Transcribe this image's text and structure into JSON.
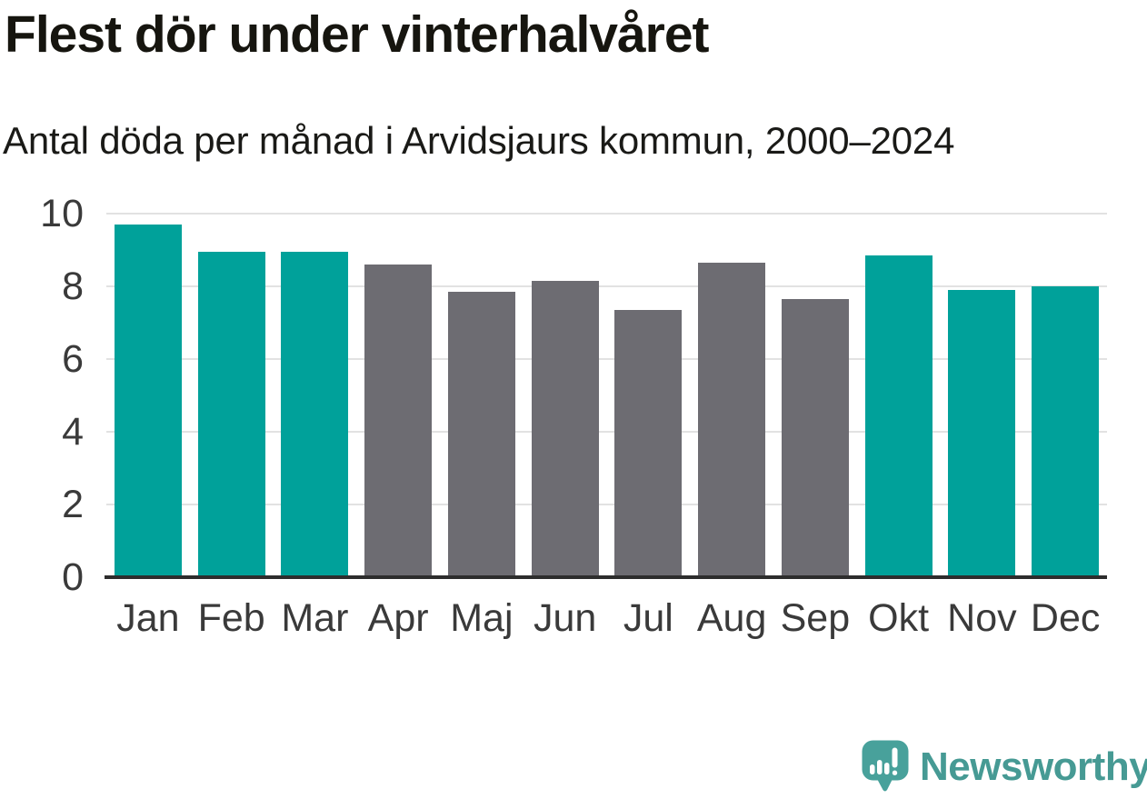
{
  "header": {
    "title": "Flest dör under vinterhalvåret",
    "subtitle": "Antal döda per månad i Arvidsjaurs kommun, 2000–2024"
  },
  "chart_data": {
    "type": "bar",
    "title": "Flest dör under vinterhalvåret",
    "subtitle": "Antal döda per månad i Arvidsjaurs kommun, 2000–2024",
    "categories": [
      "Jan",
      "Feb",
      "Mar",
      "Apr",
      "Maj",
      "Jun",
      "Jul",
      "Aug",
      "Sep",
      "Okt",
      "Nov",
      "Dec"
    ],
    "values": [
      9.7,
      8.95,
      8.95,
      8.6,
      7.85,
      8.15,
      7.35,
      8.65,
      7.65,
      8.85,
      7.9,
      8.0
    ],
    "highlighted": [
      true,
      true,
      true,
      false,
      false,
      false,
      false,
      false,
      false,
      true,
      true,
      true
    ],
    "xlabel": "",
    "ylabel": "",
    "ylim": [
      0,
      10
    ],
    "yticks": [
      0,
      2,
      4,
      6,
      8,
      10
    ],
    "grid": true,
    "legend": false
  },
  "theme": {
    "background": "#ffffff",
    "title_color": "#16150f",
    "subtitle_color": "#1a1a17",
    "tick_label_color": "#3a3a3a",
    "gridline_color": "#e2e2e2",
    "axis_line_color": "#2d2d2d",
    "bar_highlight_color": "#00a19a",
    "bar_base_color": "#6d6c72",
    "brand_color": "#469a94",
    "logo_bubble_color": "#48a19b"
  },
  "footer": {
    "brand": "Newsworthy",
    "logo_icon": "newsworthy-speech-bubble-bar-chart-icon"
  }
}
